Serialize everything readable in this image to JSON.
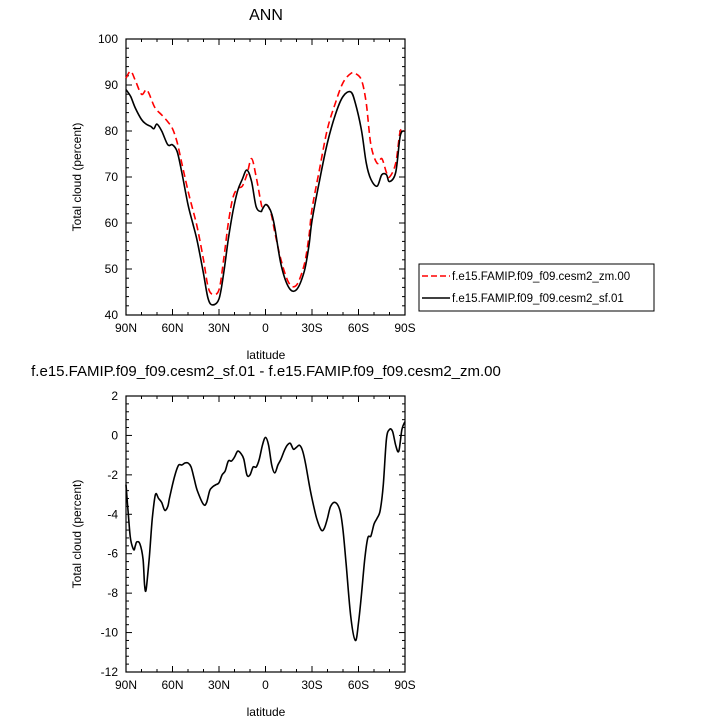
{
  "chart_data": [
    {
      "type": "line",
      "title": "ANN",
      "xlabel": "latitude",
      "ylabel": "Total cloud (percent)",
      "xlim": [
        90,
        -90
      ],
      "ylim": [
        40,
        100
      ],
      "x_ticks": [
        90,
        60,
        30,
        0,
        -30,
        -60,
        -90
      ],
      "x_tick_labels": [
        "90N",
        "60N",
        "30N",
        "0",
        "30S",
        "60S",
        "90S"
      ],
      "y_ticks": [
        40,
        50,
        60,
        70,
        80,
        90,
        100
      ],
      "y_tick_labels": [
        "40",
        "50",
        "60",
        "70",
        "80",
        "90",
        "100"
      ],
      "grid": false,
      "legend_position": "right",
      "series": [
        {
          "name": "f.e15.FAMIP.f09_f09.cesm2_zm.00",
          "color": "#ff0000",
          "dash": "dashed",
          "x": [
            90,
            87,
            84,
            80,
            77,
            75,
            72,
            70,
            67,
            63,
            60,
            57,
            54,
            50,
            47,
            44,
            40,
            37,
            34,
            30,
            27,
            24,
            21,
            18,
            15,
            12,
            9,
            6,
            3,
            2,
            0,
            -2,
            -4,
            -6,
            -10,
            -15,
            -20,
            -25,
            -28,
            -30,
            -35,
            -40,
            -45,
            -50,
            -55,
            -58,
            -62,
            -65,
            -68,
            -72,
            -75,
            -78,
            -80,
            -84,
            -87,
            -90
          ],
          "y": [
            91.5,
            93,
            91,
            88,
            89,
            88,
            85.5,
            84.5,
            83.5,
            82,
            80.5,
            77.5,
            73,
            67,
            63,
            59,
            52,
            46,
            44.5,
            45.5,
            52,
            60,
            65.5,
            67.5,
            68,
            70.5,
            74,
            70,
            64.5,
            63.5,
            64,
            63.5,
            61.5,
            58,
            52,
            47,
            46.5,
            51,
            57,
            63,
            72,
            80.5,
            86,
            90.5,
            92.5,
            92.5,
            91,
            86,
            77,
            73,
            74,
            71,
            70,
            73,
            80,
            80
          ]
        },
        {
          "name": "f.e15.FAMIP.f09_f09.cesm2_sf.01",
          "color": "#000000",
          "dash": "solid",
          "x": [
            90,
            87,
            84,
            80,
            77,
            74,
            72,
            70,
            67,
            63,
            60,
            57,
            54,
            50,
            47,
            44,
            40,
            37,
            34,
            30,
            27,
            24,
            21,
            18,
            15,
            12,
            9,
            6,
            3,
            2,
            0,
            -2,
            -4,
            -6,
            -10,
            -15,
            -20,
            -25,
            -28,
            -30,
            -35,
            -40,
            -45,
            -50,
            -55,
            -58,
            -62,
            -65,
            -68,
            -72,
            -75,
            -78,
            -80,
            -84,
            -87,
            -90
          ],
          "y": [
            89,
            87.5,
            85,
            82.5,
            81.5,
            81,
            80.5,
            81.5,
            80,
            77,
            77,
            75.5,
            71,
            64,
            60,
            56,
            49,
            43.5,
            42.2,
            43.5,
            49,
            56.5,
            62.5,
            67,
            69.5,
            71.5,
            69,
            63.5,
            62.5,
            63,
            64,
            63.5,
            62,
            59,
            51,
            46,
            45.5,
            49.5,
            55,
            60.5,
            69.5,
            77.5,
            83.5,
            87.5,
            88.5,
            86,
            80,
            73,
            69.5,
            68,
            70.5,
            70.5,
            69,
            71,
            79,
            80
          ]
        }
      ]
    },
    {
      "type": "line",
      "title": "f.e15.FAMIP.f09_f09.cesm2_sf.01 - f.e15.FAMIP.f09_f09.cesm2_zm.00",
      "xlabel": "latitude",
      "ylabel": "Total cloud (percent)",
      "xlim": [
        90,
        -90
      ],
      "ylim": [
        -12,
        2
      ],
      "x_ticks": [
        90,
        60,
        30,
        0,
        -30,
        -60,
        -90
      ],
      "x_tick_labels": [
        "90N",
        "60N",
        "30N",
        "0",
        "30S",
        "60S",
        "90S"
      ],
      "y_ticks": [
        -12,
        -10,
        -8,
        -6,
        -4,
        -2,
        0,
        2
      ],
      "y_tick_labels": [
        "-12",
        "-10",
        "-8",
        "-6",
        "-4",
        "-2",
        "0",
        "2"
      ],
      "grid": false,
      "series": [
        {
          "color": "#000000",
          "dash": "solid",
          "x": [
            90,
            89,
            88,
            87,
            85,
            84,
            83,
            81,
            79,
            78,
            77,
            75,
            73,
            71,
            69,
            67,
            65,
            63,
            62,
            60,
            58,
            56,
            54,
            52,
            50,
            48,
            46,
            44,
            40,
            38,
            36,
            34,
            32,
            30,
            28,
            26,
            24,
            22,
            20,
            18,
            16,
            14,
            12,
            10,
            8,
            6,
            4,
            2,
            0,
            -2,
            -4,
            -6,
            -8,
            -10,
            -12,
            -14,
            -16,
            -18,
            -20,
            -22,
            -24,
            -26,
            -28,
            -30,
            -33,
            -36,
            -38,
            -40,
            -42,
            -45,
            -48,
            -50,
            -52,
            -55,
            -58,
            -60,
            -62,
            -64,
            -66,
            -68,
            -70,
            -72,
            -74,
            -76,
            -78,
            -80,
            -82,
            -84,
            -86,
            -88,
            -90
          ],
          "y": [
            -2.5,
            -3.5,
            -4.5,
            -5.3,
            -5.8,
            -5.6,
            -5.4,
            -5.5,
            -6.3,
            -7.6,
            -7.8,
            -6.2,
            -4.2,
            -3,
            -3.2,
            -3.4,
            -3.8,
            -3.6,
            -3.2,
            -2.5,
            -1.9,
            -1.5,
            -1.5,
            -1.4,
            -1.4,
            -1.6,
            -2.2,
            -2.8,
            -3.5,
            -3.4,
            -2.8,
            -2.6,
            -2.5,
            -2.4,
            -2,
            -1.8,
            -1.3,
            -1.3,
            -1.1,
            -0.8,
            -0.9,
            -1.2,
            -2,
            -2,
            -1.6,
            -1.6,
            -1.2,
            -0.5,
            -0.1,
            -0.5,
            -1.5,
            -1.9,
            -1.5,
            -1.2,
            -0.8,
            -0.5,
            -0.4,
            -0.7,
            -0.6,
            -0.5,
            -0.8,
            -1.5,
            -2.4,
            -3.2,
            -4.2,
            -4.8,
            -4.7,
            -4.2,
            -3.6,
            -3.4,
            -3.8,
            -4.8,
            -6.5,
            -9.2,
            -10.4,
            -9.5,
            -8,
            -6.3,
            -5.2,
            -5.1,
            -4.5,
            -4.2,
            -3.8,
            -2.5,
            -0.2,
            0.3,
            0.2,
            -0.5,
            -0.8,
            0.3,
            0.7
          ]
        }
      ]
    }
  ]
}
